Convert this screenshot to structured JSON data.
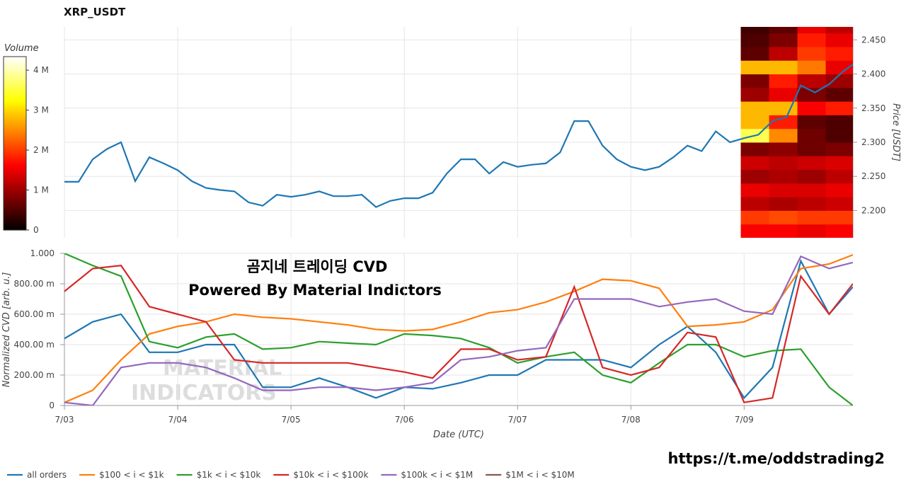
{
  "chart_data": [
    {
      "type": "line",
      "title": "XRP_USDT",
      "y_label": "Price [USDT]",
      "y_axis_side": "right",
      "grid": true,
      "xlim": [
        0,
        6.96
      ],
      "xticks": [
        0,
        1,
        2,
        3,
        4,
        5,
        6
      ],
      "ylim": [
        2.16,
        2.469
      ],
      "yticks": [
        {
          "value": 2.2,
          "label": "2.200"
        },
        {
          "value": 2.25,
          "label": "2.250"
        },
        {
          "value": 2.3,
          "label": "2.300"
        },
        {
          "value": 2.35,
          "label": "2.350"
        },
        {
          "value": 2.4,
          "label": "2.400"
        },
        {
          "value": 2.45,
          "label": "2.450"
        }
      ],
      "x": [
        0,
        0.125,
        0.25,
        0.375,
        0.5,
        0.625,
        0.75,
        0.875,
        1,
        1.125,
        1.25,
        1.375,
        1.5,
        1.625,
        1.75,
        1.875,
        2,
        2.125,
        2.25,
        2.375,
        2.5,
        2.625,
        2.75,
        2.875,
        3,
        3.125,
        3.25,
        3.375,
        3.5,
        3.625,
        3.75,
        3.875,
        4,
        4.125,
        4.25,
        4.375,
        4.5,
        4.625,
        4.75,
        4.875,
        5,
        5.125,
        5.25,
        5.375,
        5.5,
        5.625,
        5.75,
        5.875,
        6,
        6.125,
        6.25,
        6.375,
        6.5,
        6.625,
        6.75,
        6.875,
        6.96
      ],
      "series": [
        {
          "color": "#1f77b4",
          "values": [
            2.242,
            2.242,
            2.275,
            2.29,
            2.3,
            2.243,
            2.278,
            2.269,
            2.259,
            2.243,
            2.233,
            2.23,
            2.228,
            2.212,
            2.207,
            2.223,
            2.22,
            2.223,
            2.228,
            2.221,
            2.221,
            2.223,
            2.205,
            2.214,
            2.218,
            2.218,
            2.226,
            2.254,
            2.275,
            2.275,
            2.254,
            2.271,
            2.264,
            2.267,
            2.269,
            2.285,
            2.331,
            2.331,
            2.295,
            2.275,
            2.264,
            2.259,
            2.264,
            2.278,
            2.295,
            2.287,
            2.316,
            2.3,
            2.306,
            2.311,
            2.331,
            2.337,
            2.383,
            2.373,
            2.385,
            2.404,
            2.414
          ]
        }
      ],
      "heatmap": {
        "colormap": "hot",
        "title": "Volume",
        "zlim": [
          0,
          4340000
        ],
        "zticks": [
          0,
          {
            "value": 1000000,
            "label": "1 M"
          },
          {
            "value": 2000000,
            "label": "2 M"
          },
          {
            "value": 3000000,
            "label": "3 M"
          },
          {
            "value": 4000000,
            "label": "4 M"
          }
        ],
        "x": [
          5.97,
          6.22,
          6.47,
          6.72,
          6.96
        ],
        "y": [
          2.16,
          2.18,
          2.2,
          2.22,
          2.24,
          2.26,
          2.28,
          2.3,
          2.32,
          2.34,
          2.36,
          2.38,
          2.4,
          2.42,
          2.44,
          2.46,
          2.48
        ],
        "values": [
          [
            1600000,
            1600000,
            1500000,
            1600000
          ],
          [
            2000000,
            2100000,
            2000000,
            2000000
          ],
          [
            1200000,
            1100000,
            1200000,
            1300000
          ],
          [
            1500000,
            1400000,
            1400000,
            1500000
          ],
          [
            1000000,
            1100000,
            1000000,
            1200000
          ],
          [
            1300000,
            1200000,
            1300000,
            1400000
          ],
          [
            800000,
            900000,
            700000,
            800000
          ],
          [
            3600000,
            2500000,
            700000,
            500000
          ],
          [
            2800000,
            1800000,
            600000,
            500000
          ],
          [
            2800000,
            2800000,
            1600000,
            1800000
          ],
          [
            1000000,
            1500000,
            800000,
            600000
          ],
          [
            800000,
            1800000,
            1200000,
            1000000
          ],
          [
            2800000,
            2800000,
            2400000,
            1500000
          ],
          [
            600000,
            1200000,
            2000000,
            1800000
          ],
          [
            500000,
            800000,
            1800000,
            1500000
          ],
          [
            400000,
            600000,
            1500000,
            1200000
          ]
        ]
      }
    },
    {
      "type": "line",
      "x_label": "Date (UTC)",
      "y_label": "Normalized CVD [arb. u.]",
      "grid": true,
      "legend": "bottom-left",
      "xlim": [
        0,
        6.96
      ],
      "xticks": [
        {
          "value": 0,
          "label": "7/03"
        },
        {
          "value": 1,
          "label": "7/04"
        },
        {
          "value": 2,
          "label": "7/05"
        },
        {
          "value": 3,
          "label": "7/06"
        },
        {
          "value": 4,
          "label": "7/07"
        },
        {
          "value": 5,
          "label": "7/08"
        },
        {
          "value": 6,
          "label": "7/09"
        }
      ],
      "ylim": [
        0,
        1
      ],
      "yticks": [
        0,
        {
          "value": 0.2,
          "label": "200.00 m"
        },
        {
          "value": 0.4,
          "label": "400.00 m"
        },
        {
          "value": 0.6,
          "label": "600.00 m"
        },
        {
          "value": 0.8,
          "label": "800.00 m"
        },
        {
          "value": 1,
          "label": "1.000"
        }
      ],
      "annotations": [
        "곰지네 트레이딩 CVD",
        "Powered By Material Indictors",
        "https://t.me/oddstrading2"
      ],
      "watermark": [
        "MATERIAL",
        "INDICATORS"
      ],
      "x": [
        0,
        0.25,
        0.5,
        0.75,
        1,
        1.25,
        1.5,
        1.75,
        2,
        2.25,
        2.5,
        2.75,
        3,
        3.25,
        3.5,
        3.75,
        4,
        4.25,
        4.5,
        4.75,
        5,
        5.25,
        5.5,
        5.75,
        6,
        6.25,
        6.5,
        6.75,
        6.96
      ],
      "series": [
        {
          "name": "all orders",
          "color": "#1f77b4",
          "values": [
            0.44,
            0.55,
            0.6,
            0.35,
            0.35,
            0.4,
            0.4,
            0.12,
            0.12,
            0.18,
            0.12,
            0.05,
            0.12,
            0.11,
            0.15,
            0.2,
            0.2,
            0.3,
            0.3,
            0.3,
            0.25,
            0.4,
            0.52,
            0.35,
            0.05,
            0.25,
            0.95,
            0.6,
            0.78
          ]
        },
        {
          "name": "$100 < i < $1k",
          "color": "#ff7f0e",
          "values": [
            0.02,
            0.1,
            0.3,
            0.47,
            0.52,
            0.55,
            0.6,
            0.58,
            0.57,
            0.55,
            0.53,
            0.5,
            0.49,
            0.5,
            0.55,
            0.61,
            0.63,
            0.68,
            0.75,
            0.83,
            0.82,
            0.77,
            0.52,
            0.53,
            0.55,
            0.63,
            0.9,
            0.93,
            0.99
          ]
        },
        {
          "name": "$1k < i < $10k",
          "color": "#2ca02c",
          "values": [
            1,
            0.92,
            0.85,
            0.42,
            0.38,
            0.45,
            0.47,
            0.37,
            0.38,
            0.42,
            0.41,
            0.4,
            0.47,
            0.46,
            0.44,
            0.38,
            0.28,
            0.32,
            0.35,
            0.2,
            0.15,
            0.28,
            0.4,
            0.4,
            0.32,
            0.36,
            0.37,
            0.12,
            0
          ]
        },
        {
          "name": "$10k < i < $100k",
          "color": "#d62728",
          "values": [
            0.75,
            0.9,
            0.92,
            0.65,
            0.6,
            0.55,
            0.3,
            0.28,
            0.28,
            0.28,
            0.28,
            0.25,
            0.22,
            0.18,
            0.37,
            0.37,
            0.3,
            0.32,
            0.78,
            0.25,
            0.2,
            0.25,
            0.48,
            0.45,
            0.02,
            0.05,
            0.85,
            0.6,
            0.8
          ]
        },
        {
          "name": "$100k < i < $1M",
          "color": "#9467bd",
          "values": [
            0.02,
            0,
            0.25,
            0.28,
            0.28,
            0.25,
            0.18,
            0.1,
            0.1,
            0.12,
            0.12,
            0.1,
            0.12,
            0.15,
            0.3,
            0.32,
            0.36,
            0.38,
            0.7,
            0.7,
            0.7,
            0.65,
            0.68,
            0.7,
            0.62,
            0.6,
            0.98,
            0.9,
            0.94
          ]
        },
        {
          "name": "$1M < i < $10M",
          "color": "#8c564b",
          "values": [
            null,
            null,
            null,
            null,
            null,
            null,
            null,
            null,
            null,
            null,
            null,
            null,
            null,
            null,
            null,
            null,
            null,
            null,
            null,
            null,
            null,
            null,
            null,
            null,
            null,
            null,
            null,
            null,
            null
          ]
        }
      ]
    }
  ]
}
